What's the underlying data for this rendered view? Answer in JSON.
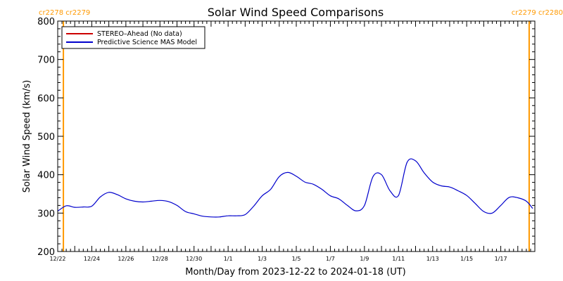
{
  "colors": {
    "carrington": "#ff9900",
    "stereo": "#cc0000",
    "model": "#0000cc",
    "axis": "#000000"
  },
  "carrington_labels": {
    "top_left": "cr2278 cr2279",
    "top_right": "cr2279 cr2280"
  },
  "chart_data": {
    "type": "line",
    "title": "Solar Wind Speed Comparisons",
    "xlabel": "Month/Day from 2023-12-22 to 2024-01-18 (UT)",
    "ylabel": "Solar Wind Speed (km/s)",
    "ylim": [
      200,
      800
    ],
    "yticks": [
      200,
      300,
      400,
      500,
      600,
      700,
      800
    ],
    "xlim": [
      "2023-12-22",
      "2024-01-18"
    ],
    "xtick_labels": [
      "12/22",
      "12/24",
      "12/26",
      "12/28",
      "12/30",
      "1/1",
      "1/3",
      "1/5",
      "1/7",
      "1/9",
      "1/11",
      "1/13",
      "1/15",
      "1/17"
    ],
    "legend_position": "top-left",
    "vlines": [
      {
        "x": "2023-12-22T08:00",
        "label": "cr2278 cr2279"
      },
      {
        "x": "2024-01-18T16:00",
        "label": "cr2279 cr2280"
      }
    ],
    "series": [
      {
        "name": "STEREO–Ahead (No data)",
        "color": "#cc0000",
        "x": [],
        "values": []
      },
      {
        "name": "Predictive Science MAS Model",
        "color": "#0000cc",
        "x": [
          "2023-12-22T00:00",
          "2023-12-22T12:00",
          "2023-12-23T00:00",
          "2023-12-23T12:00",
          "2023-12-24T00:00",
          "2023-12-24T12:00",
          "2023-12-25T00:00",
          "2023-12-25T12:00",
          "2023-12-26T00:00",
          "2023-12-26T12:00",
          "2023-12-27T00:00",
          "2023-12-27T12:00",
          "2023-12-28T00:00",
          "2023-12-28T12:00",
          "2023-12-29T00:00",
          "2023-12-29T12:00",
          "2023-12-30T00:00",
          "2023-12-30T12:00",
          "2023-12-31T00:00",
          "2023-12-31T12:00",
          "2024-01-01T00:00",
          "2024-01-01T12:00",
          "2024-01-02T00:00",
          "2024-01-02T12:00",
          "2024-01-03T00:00",
          "2024-01-03T12:00",
          "2024-01-04T00:00",
          "2024-01-04T12:00",
          "2024-01-05T00:00",
          "2024-01-05T12:00",
          "2024-01-06T00:00",
          "2024-01-06T12:00",
          "2024-01-07T00:00",
          "2024-01-07T12:00",
          "2024-01-08T00:00",
          "2024-01-08T12:00",
          "2024-01-09T00:00",
          "2024-01-09T12:00",
          "2024-01-10T00:00",
          "2024-01-10T12:00",
          "2024-01-11T00:00",
          "2024-01-11T12:00",
          "2024-01-12T00:00",
          "2024-01-12T12:00",
          "2024-01-13T00:00",
          "2024-01-13T12:00",
          "2024-01-14T00:00",
          "2024-01-14T12:00",
          "2024-01-15T00:00",
          "2024-01-15T12:00",
          "2024-01-16T00:00",
          "2024-01-16T12:00",
          "2024-01-17T00:00",
          "2024-01-17T12:00",
          "2024-01-18T00:00",
          "2024-01-18T12:00",
          "2024-01-18T21:00"
        ],
        "values": [
          305,
          319,
          315,
          316,
          318,
          342,
          354,
          348,
          337,
          331,
          329,
          331,
          333,
          330,
          320,
          304,
          298,
          292,
          290,
          290,
          293,
          293,
          296,
          318,
          345,
          362,
          395,
          406,
          396,
          381,
          375,
          362,
          345,
          337,
          320,
          306,
          320,
          395,
          400,
          358,
          346,
          432,
          436,
          405,
          381,
          371,
          368,
          358,
          346,
          325,
          304,
          300,
          320,
          341,
          340,
          331,
          312
        ]
      }
    ]
  }
}
